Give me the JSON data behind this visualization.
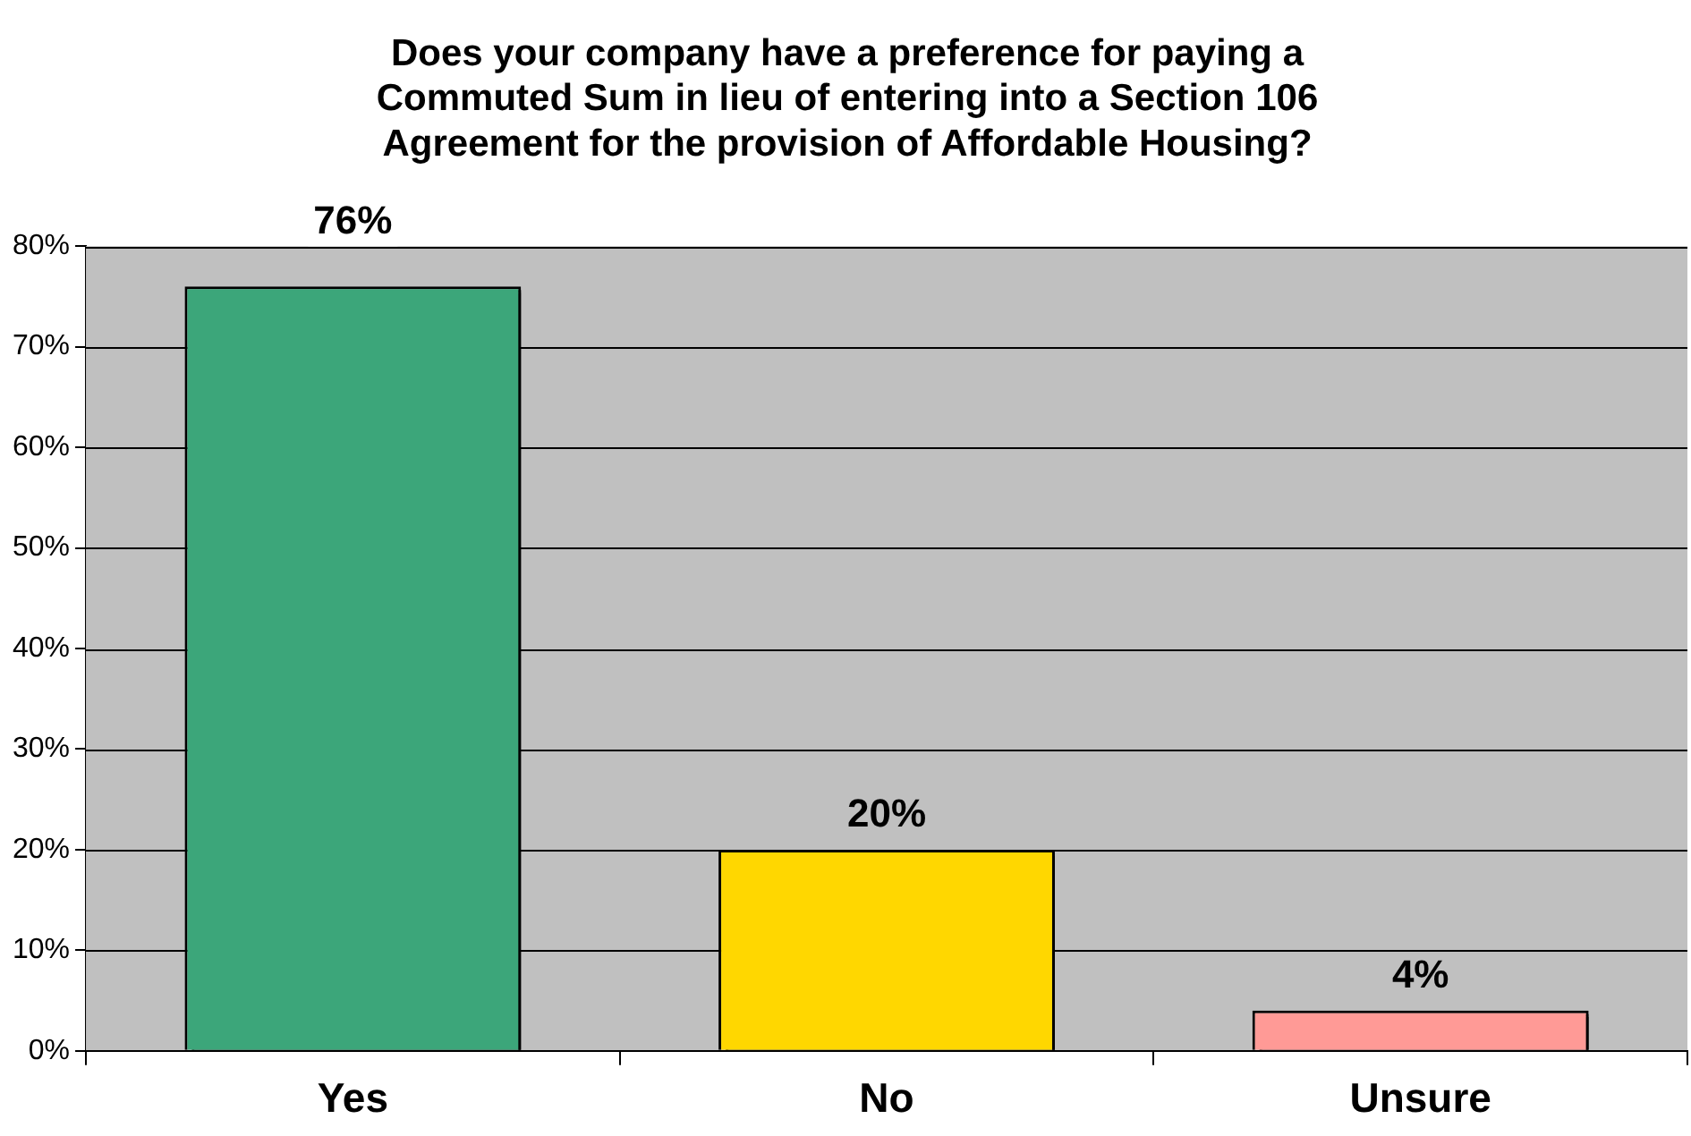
{
  "chart_data": {
    "type": "bar",
    "title": "Does your company have a preference for paying a\nCommuted Sum in lieu of entering into a Section 106\nAgreement for the provision of Affordable Housing?",
    "categories": [
      "Yes",
      "No",
      "Unsure"
    ],
    "values": [
      76,
      20,
      4
    ],
    "colors": [
      "#3ca67a",
      "#ffd700",
      "#ff9a96"
    ],
    "value_labels": [
      "76%",
      "20%",
      "4%"
    ],
    "ylim": [
      0,
      80
    ],
    "yticks": [
      {
        "value": 0,
        "label": "0%"
      },
      {
        "value": 10,
        "label": "10%"
      },
      {
        "value": 20,
        "label": "20%"
      },
      {
        "value": 30,
        "label": "30%"
      },
      {
        "value": 40,
        "label": "40%"
      },
      {
        "value": 50,
        "label": "50%"
      },
      {
        "value": 60,
        "label": "60%"
      },
      {
        "value": 70,
        "label": "70%"
      },
      {
        "value": 80,
        "label": "80%"
      }
    ],
    "grid": "y",
    "legend": false
  }
}
